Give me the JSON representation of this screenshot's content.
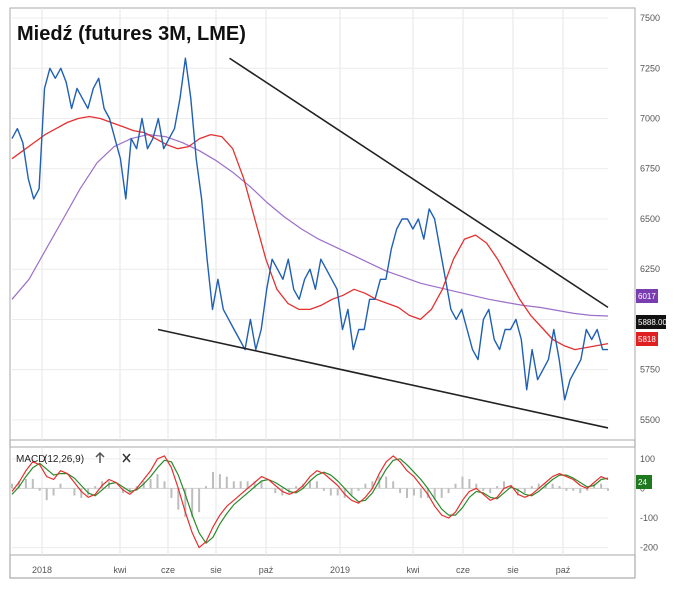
{
  "chart_data": [
    {
      "type": "line",
      "title": "Miedź (futures 3M, LME)",
      "x_ticks": [
        "2018",
        "kwi",
        "cze",
        "sie",
        "paź",
        "2019",
        "kwi",
        "cze",
        "sie",
        "paź"
      ],
      "y_ticks": [
        5500,
        5750,
        6000,
        6250,
        6500,
        6750,
        7000,
        7250,
        7500
      ],
      "y_tick_labels": [
        "5500",
        "5750",
        "6000",
        "6250",
        "6500",
        "6750",
        "7000",
        "7250",
        "7500"
      ],
      "ylim": [
        5400,
        7550
      ],
      "grid": true,
      "series": [
        {
          "color": "#1f5fb4",
          "role": "price",
          "values": [
            6900,
            6950,
            6880,
            6700,
            6600,
            6650,
            7150,
            7250,
            7200,
            7250,
            7180,
            7050,
            7150,
            7100,
            7050,
            7150,
            7200,
            7050,
            7000,
            6900,
            6800,
            6600,
            6900,
            6850,
            7000,
            6850,
            6900,
            7000,
            6850,
            6900,
            6950,
            7100,
            7300,
            7100,
            6800,
            6600,
            6300,
            6050,
            6200,
            6050,
            6000,
            5950,
            5900,
            5850,
            6000,
            5850,
            5950,
            6150,
            6300,
            6250,
            6200,
            6300,
            6150,
            6100,
            6200,
            6250,
            6150,
            6300,
            6250,
            6200,
            6150,
            5950,
            6050,
            5850,
            5950,
            5950,
            6100,
            6100,
            6200,
            6200,
            6350,
            6450,
            6500,
            6500,
            6450,
            6500,
            6400,
            6550,
            6500,
            6350,
            6200,
            6050,
            6000,
            6050,
            5950,
            5850,
            5800,
            6000,
            6050,
            5900,
            5850,
            5950,
            5950,
            6000,
            5900,
            5650,
            5850,
            5700,
            5750,
            5800,
            5950,
            5800,
            5600,
            5700,
            5750,
            5800,
            5950,
            5900,
            5950,
            5850,
            5850
          ],
          "x_start": 0,
          "x_end": 1
        },
        {
          "color": "#e53030",
          "role": "short moving average",
          "values": [
            6800,
            6840,
            6880,
            6920,
            6950,
            6980,
            7000,
            7010,
            7000,
            6980,
            6960,
            6940,
            6930,
            6900,
            6870,
            6850,
            6860,
            6900,
            6920,
            6910,
            6850,
            6700,
            6500,
            6300,
            6150,
            6080,
            6050,
            6050,
            6070,
            6100,
            6120,
            6150,
            6130,
            6100,
            6080,
            6060,
            6020,
            6000,
            6050,
            6150,
            6300,
            6400,
            6420,
            6380,
            6300,
            6200,
            6100,
            6020,
            5960,
            5900,
            5870,
            5850,
            5860,
            5870,
            5880
          ],
          "x_start": 0,
          "x_end": 1,
          "last_value": 5818,
          "last_value_label": "5818"
        },
        {
          "color": "#9b6fc8",
          "role": "long moving average",
          "values": [
            6100,
            6200,
            6350,
            6500,
            6650,
            6780,
            6860,
            6900,
            6920,
            6910,
            6880,
            6840,
            6790,
            6730,
            6660,
            6580,
            6510,
            6450,
            6400,
            6360,
            6320,
            6280,
            6240,
            6210,
            6180,
            6160,
            6140,
            6120,
            6100,
            6085,
            6070,
            6060,
            6045,
            6030,
            6020,
            6017
          ],
          "x_start": 0,
          "x_end": 1,
          "last_value": 6017,
          "last_value_label": "6017"
        }
      ],
      "last_price_label": "5888.00",
      "trendlines": [
        {
          "from": [
            0.365,
            7300
          ],
          "to": [
            1.0,
            6060
          ],
          "color": "#222"
        },
        {
          "from": [
            0.245,
            5950
          ],
          "to": [
            1.0,
            5460
          ],
          "color": "#222"
        }
      ]
    },
    {
      "type": "line",
      "title": "",
      "legend": {
        "label": "MACD",
        "params": "(12,26,9)",
        "arrow_icon": "up-arrow-icon",
        "close_icon": "close-icon"
      },
      "y_ticks": [
        100,
        0,
        -100,
        -200
      ],
      "y_tick_labels": [
        "100",
        "0",
        "-100",
        "-200"
      ],
      "ylim": [
        -225,
        140
      ],
      "badge_value": "24",
      "series": [
        {
          "color": "#e53030",
          "role": "macd",
          "values": [
            -10,
            20,
            60,
            90,
            80,
            40,
            30,
            60,
            50,
            20,
            -10,
            -30,
            -20,
            10,
            30,
            20,
            -5,
            -20,
            0,
            30,
            60,
            100,
            110,
            70,
            0,
            -80,
            -150,
            -200,
            -180,
            -130,
            -90,
            -60,
            -40,
            -20,
            0,
            20,
            40,
            30,
            10,
            -10,
            -20,
            -10,
            10,
            40,
            60,
            50,
            30,
            10,
            -20,
            -40,
            -50,
            -30,
            0,
            50,
            90,
            110,
            90,
            60,
            40,
            10,
            -20,
            -60,
            -90,
            -100,
            -80,
            -40,
            -10,
            0,
            -20,
            -40,
            -30,
            0,
            10,
            -20,
            -30,
            -20,
            0,
            20,
            40,
            50,
            40,
            30,
            10,
            0,
            20,
            40,
            30
          ],
          "x_start": 0,
          "x_end": 1
        },
        {
          "color": "#2a8a2a",
          "role": "signal",
          "values": [
            -20,
            5,
            40,
            70,
            85,
            65,
            45,
            50,
            50,
            35,
            10,
            -15,
            -25,
            -5,
            15,
            20,
            5,
            -10,
            -5,
            15,
            40,
            70,
            95,
            90,
            45,
            -20,
            -90,
            -150,
            -185,
            -165,
            -120,
            -85,
            -55,
            -35,
            -15,
            5,
            25,
            30,
            20,
            5,
            -10,
            -15,
            0,
            25,
            45,
            55,
            45,
            25,
            0,
            -25,
            -45,
            -40,
            -15,
            25,
            65,
            95,
            100,
            80,
            55,
            30,
            0,
            -35,
            -70,
            -90,
            -90,
            -65,
            -30,
            -10,
            -15,
            -30,
            -35,
            -15,
            5,
            -5,
            -20,
            -25,
            -10,
            10,
            30,
            45,
            45,
            35,
            20,
            5,
            10,
            30,
            35
          ],
          "x_start": 0,
          "x_end": 1
        }
      ]
    }
  ]
}
